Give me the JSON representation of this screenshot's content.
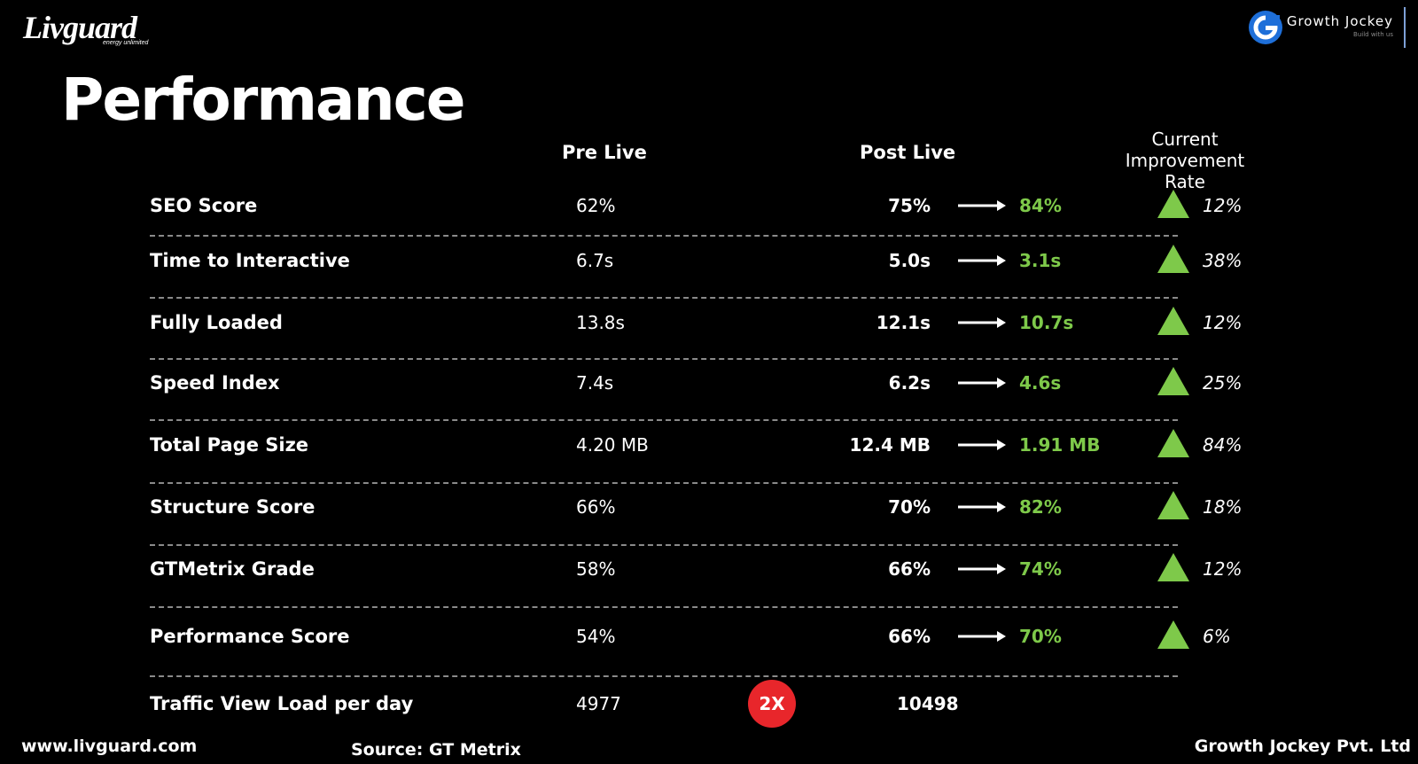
{
  "brand": {
    "left_logo": "Livguard",
    "left_tagline": "energy unlimited",
    "right_name": "Growth Jockey",
    "right_tagline": "Build with us"
  },
  "title": "Performance",
  "columns": {
    "pre_live": "Pre Live",
    "post_live": "Post Live",
    "rate_line1": "Current",
    "rate_line2": "Improvement Rate"
  },
  "rows": [
    {
      "metric": "SEO Score",
      "pre_live": "62%",
      "post_live": "75%",
      "improved": "84%",
      "rate": "12%"
    },
    {
      "metric": "Time to Interactive",
      "pre_live": "6.7s",
      "post_live": "5.0s",
      "improved": "3.1s",
      "rate": "38%"
    },
    {
      "metric": "Fully Loaded",
      "pre_live": "13.8s",
      "post_live": "12.1s",
      "improved": "10.7s",
      "rate": "12%"
    },
    {
      "metric": "Speed Index",
      "pre_live": "7.4s",
      "post_live": "6.2s",
      "improved": "4.6s",
      "rate": "25%"
    },
    {
      "metric": "Total Page Size",
      "pre_live": "4.20 MB",
      "post_live": "12.4 MB",
      "improved": "1.91 MB",
      "rate": "84%"
    },
    {
      "metric": "Structure Score",
      "pre_live": "66%",
      "post_live": "70%",
      "improved": "82%",
      "rate": "18%"
    },
    {
      "metric": "GTMetrix Grade",
      "pre_live": "58%",
      "post_live": "66%",
      "improved": "74%",
      "rate": "12%"
    },
    {
      "metric": "Performance Score",
      "pre_live": "54%",
      "post_live": "66%",
      "improved": "70%",
      "rate": "6%"
    }
  ],
  "traffic": {
    "metric": "Traffic View Load per day",
    "pre_live": "4977",
    "badge": "2X",
    "post_live": "10498"
  },
  "footer": {
    "website": "www.livguard.com",
    "source": "Source: GT Metrix",
    "company": "Growth Jockey Pvt. Ltd"
  },
  "colors": {
    "improved_text": "#7ec94a",
    "triangle": "#7ec94a",
    "badge": "#e8262b"
  },
  "icons": {
    "change_arrow": "right-arrow-icon",
    "improvement": "triangle-up-icon"
  }
}
